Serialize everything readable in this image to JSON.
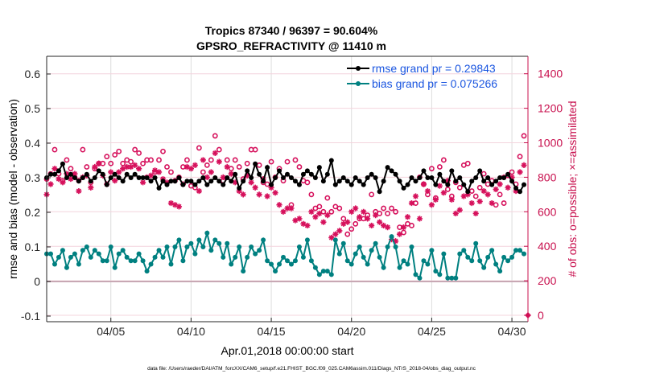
{
  "chart_data": {
    "type": "line",
    "title": "Tropics 87340 / 96397 = 90.604%",
    "subtitle": "GPSRO_REFRACTIVITY @ 11410 m",
    "xlabel": "Apr.01,2018 00:00:00 start",
    "ylabel": "rmse and bias (model - observation)",
    "y2label": "# of obs: o=possible; ×=assimilated",
    "footer": "data file: /Users/raeder/DAI/ATM_forcXX/CAM6_setup/f.e21.FHIST_BGC.f09_025.CAM6assim.011/Diags_NTrS_2018-04/obs_diag_output.nc",
    "x_unit": "days since Apr.01,2018 00:00:00",
    "x_step_days": 0.25,
    "xlim": [
      0,
      30
    ],
    "xticks": [
      {
        "day": 4,
        "label": "04/05"
      },
      {
        "day": 9,
        "label": "04/10"
      },
      {
        "day": 14,
        "label": "04/15"
      },
      {
        "day": 19,
        "label": "04/20"
      },
      {
        "day": 24,
        "label": "04/25"
      },
      {
        "day": 29,
        "label": "04/30"
      }
    ],
    "ylim": [
      -0.12,
      0.65
    ],
    "yticks": [
      {
        "v": -0.1,
        "label": "-0.1"
      },
      {
        "v": 0,
        "label": "0"
      },
      {
        "v": 0.1,
        "label": "0.1"
      },
      {
        "v": 0.2,
        "label": "0.2"
      },
      {
        "v": 0.3,
        "label": "0.3"
      },
      {
        "v": 0.4,
        "label": "0.4"
      },
      {
        "v": 0.5,
        "label": "0.5"
      },
      {
        "v": 0.6,
        "label": "0.6"
      }
    ],
    "y2lim": [
      0,
      1500
    ],
    "y2ticks": [
      {
        "v": 0,
        "label": "0"
      },
      {
        "v": 200,
        "label": "200"
      },
      {
        "v": 400,
        "label": "400"
      },
      {
        "v": 600,
        "label": "600"
      },
      {
        "v": 800,
        "label": "800"
      },
      {
        "v": 1000,
        "label": "1000"
      },
      {
        "v": 1200,
        "label": "1200"
      },
      {
        "v": 1400,
        "label": "1400"
      }
    ],
    "grid": true,
    "legend_position": "top-right",
    "colors": {
      "rmse": "#000000",
      "bias": "#008080",
      "obs": "#d6115c",
      "legend_text": "#1a55e0",
      "zero_line": "#c8a8b4",
      "right_axis": "#c8104e"
    },
    "series": [
      {
        "name": "rmse grand pr = 0.29843",
        "key": "rmse",
        "axis": "left",
        "values": [
          0.3,
          0.31,
          0.31,
          0.32,
          0.34,
          0.3,
          0.31,
          0.3,
          0.29,
          0.3,
          0.31,
          0.29,
          0.3,
          0.32,
          0.31,
          0.28,
          0.3,
          0.31,
          0.3,
          0.29,
          0.31,
          0.3,
          0.31,
          0.3,
          0.3,
          0.3,
          0.29,
          0.3,
          0.27,
          0.29,
          0.28,
          0.29,
          0.29,
          0.3,
          0.28,
          0.29,
          0.29,
          0.28,
          0.29,
          0.3,
          0.28,
          0.29,
          0.3,
          0.29,
          0.28,
          0.3,
          0.29,
          0.31,
          0.27,
          0.29,
          0.32,
          0.3,
          0.34,
          0.31,
          0.29,
          0.33,
          0.28,
          0.3,
          0.32,
          0.3,
          0.31,
          0.3,
          0.29,
          0.28,
          0.31,
          0.32,
          0.31,
          0.3,
          0.33,
          0.29,
          0.31,
          0.35,
          0.28,
          0.29,
          0.3,
          0.29,
          0.28,
          0.3,
          0.29,
          0.28,
          0.3,
          0.31,
          0.3,
          0.26,
          0.29,
          0.33,
          0.32,
          0.31,
          0.29,
          0.27,
          0.28,
          0.3,
          0.29,
          0.3,
          0.32,
          0.3,
          0.3,
          0.28,
          0.31,
          0.29,
          0.28,
          0.32,
          0.29,
          0.3,
          0.28,
          0.26,
          0.29,
          0.3,
          0.32,
          0.29,
          0.3,
          0.28,
          0.29,
          0.3,
          0.3,
          0.31,
          0.29,
          0.27,
          0.26,
          0.28
        ]
      },
      {
        "name": "bias grand pr = 0.075266",
        "key": "bias",
        "axis": "left",
        "values": [
          0.08,
          0.08,
          0.05,
          0.07,
          0.09,
          0.04,
          0.07,
          0.08,
          0.05,
          0.09,
          0.1,
          0.07,
          0.09,
          0.08,
          0.06,
          0.06,
          0.1,
          0.04,
          0.08,
          0.09,
          0.07,
          0.06,
          0.06,
          0.08,
          0.06,
          0.03,
          0.05,
          0.07,
          0.09,
          0.07,
          0.1,
          0.05,
          0.1,
          0.12,
          0.06,
          0.1,
          0.11,
          0.08,
          0.12,
          0.1,
          0.14,
          0.09,
          0.12,
          0.11,
          0.07,
          0.11,
          0.05,
          0.07,
          0.1,
          0.03,
          0.07,
          0.1,
          0.08,
          0.09,
          0.12,
          0.06,
          0.05,
          0.03,
          0.05,
          0.07,
          0.06,
          0.05,
          0.06,
          0.1,
          0.07,
          0.12,
          0.06,
          0.04,
          0.02,
          0.03,
          0.03,
          0.02,
          0.12,
          0.08,
          0.11,
          0.06,
          0.05,
          0.08,
          0.1,
          0.07,
          0.05,
          0.09,
          0.11,
          0.07,
          0.04,
          0.1,
          0.13,
          0.1,
          0.04,
          0.06,
          0.05,
          0.1,
          0.02,
          0.01,
          0.06,
          0.05,
          0.09,
          0.03,
          0.02,
          0.08,
          0.01,
          0.01,
          0.01,
          0.08,
          0.09,
          0.07,
          0.06,
          0.11,
          0.06,
          0.04,
          0.07,
          0.09,
          0.05,
          0.03,
          0.07,
          0.06,
          0.07,
          0.09,
          0.09,
          0.08
        ]
      },
      {
        "name": "possible",
        "key": "possible",
        "axis": "right",
        "marker": "o",
        "values": [
          790,
          820,
          960,
          820,
          780,
          900,
          850,
          800,
          780,
          960,
          860,
          770,
          850,
          880,
          880,
          920,
          880,
          930,
          950,
          880,
          900,
          890,
          960,
          940,
          880,
          900,
          900,
          830,
          900,
          950,
          860,
          830,
          780,
          800,
          860,
          900,
          750,
          740,
          970,
          830,
          870,
          900,
          1040,
          960,
          780,
          900,
          850,
          900,
          860,
          790,
          880,
          960,
          960,
          870,
          770,
          760,
          890,
          800,
          850,
          780,
          890,
          640,
          900,
          860,
          780,
          770,
          700,
          620,
          630,
          600,
          680,
          600,
          630,
          620,
          560,
          470,
          500,
          530,
          560,
          560,
          580,
          700,
          600,
          590,
          620,
          590,
          620,
          600,
          510,
          480,
          530,
          520,
          650,
          800,
          760,
          700,
          850,
          680,
          860,
          900,
          730,
          690,
          770,
          740,
          870,
          880,
          720,
          690,
          740,
          820,
          760,
          780,
          640,
          700,
          650,
          810,
          830,
          760,
          920,
          1040
        ]
      },
      {
        "name": "assimilated",
        "key": "assimilated",
        "axis": "right",
        "marker": "*",
        "values": [
          700,
          760,
          850,
          790,
          770,
          820,
          790,
          820,
          720,
          800,
          810,
          740,
          860,
          880,
          810,
          760,
          830,
          780,
          830,
          850,
          860,
          860,
          870,
          850,
          770,
          800,
          810,
          840,
          830,
          790,
          770,
          650,
          640,
          630,
          760,
          860,
          850,
          870,
          720,
          900,
          800,
          830,
          940,
          890,
          800,
          860,
          820,
          770,
          720,
          700,
          810,
          770,
          740,
          700,
          790,
          690,
          740,
          710,
          640,
          600,
          620,
          620,
          550,
          560,
          530,
          520,
          600,
          570,
          590,
          540,
          580,
          450,
          470,
          490,
          530,
          540,
          600,
          620,
          570,
          600,
          560,
          520,
          580,
          540,
          520,
          510,
          440,
          430,
          470,
          510,
          570,
          650,
          690,
          560,
          760,
          720,
          640,
          670,
          750,
          710,
          780,
          670,
          590,
          610,
          690,
          700,
          650,
          590,
          660,
          720,
          700,
          650,
          730,
          760,
          800,
          740,
          800,
          720,
          830,
          870
        ]
      }
    ],
    "special_marker": {
      "label": "0 obs marker",
      "day": 30,
      "value": 0
    }
  }
}
